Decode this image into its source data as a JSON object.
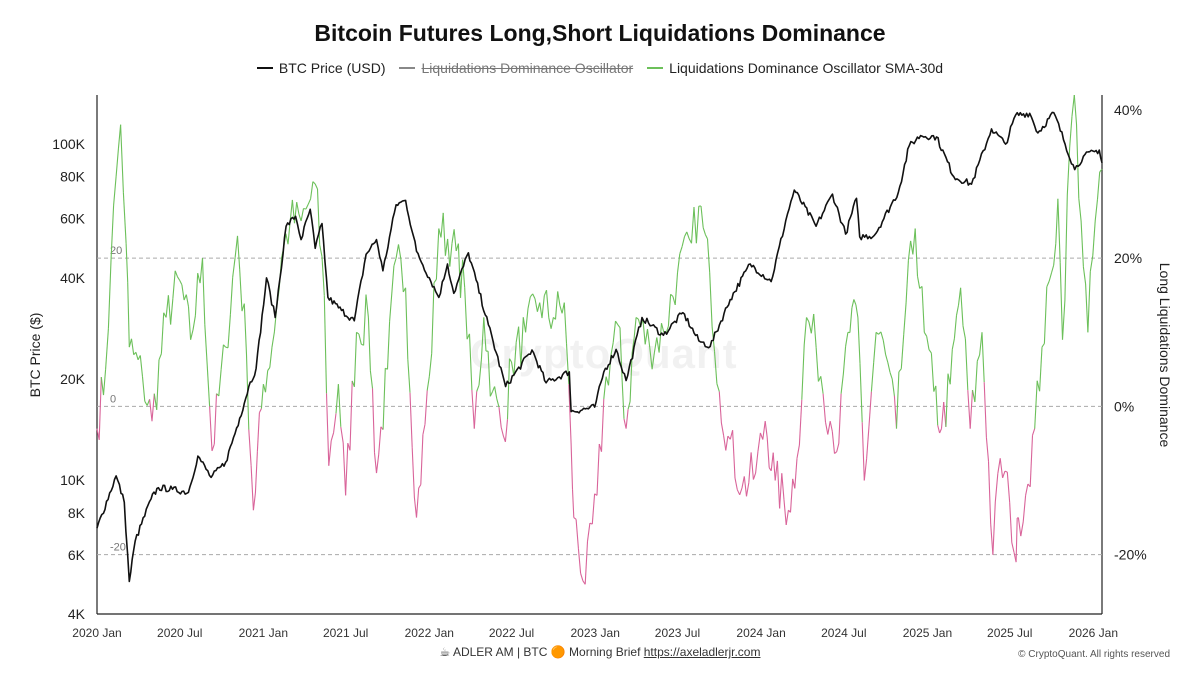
{
  "title": "Bitcoin Futures Long,Short Liquidations Dominance",
  "legend": [
    {
      "label": "BTC Price (USD)",
      "color": "#111111",
      "struck": false
    },
    {
      "label": "Liquidations Dominance Oscillator",
      "color": "#888888",
      "struck": true
    },
    {
      "label": "Liquidations Dominance Oscillator SMA-30d",
      "color": "#6cc05a",
      "struck": false
    }
  ],
  "watermark": "CryptoQuant",
  "footer": {
    "text_before": "☕ ADLER AM | BTC 🟠 Morning Brief ",
    "link": "https://axeladlerjr.com",
    "copyright": "© CryptoQuant. All rights reserved"
  },
  "chart_data": {
    "type": "line",
    "xlabel": "",
    "x_ticks": [
      "2020 Jan",
      "2020 Jul",
      "2021 Jan",
      "2021 Jul",
      "2022 Jan",
      "2022 Jul",
      "2023 Jan",
      "2023 Jul",
      "2024 Jan",
      "2024 Jul",
      "2025 Jan",
      "2025 Jul",
      "2026 Jan"
    ],
    "x_range": [
      "2020-01-01",
      "2026-01-20"
    ],
    "y_left": {
      "label": "BTC Price ($)",
      "scale": "log",
      "range": [
        4000,
        140000
      ],
      "ticks": [
        {
          "v": 4000,
          "t": "4K"
        },
        {
          "v": 6000,
          "t": "6K"
        },
        {
          "v": 8000,
          "t": "8K"
        },
        {
          "v": 10000,
          "t": "10K"
        },
        {
          "v": 20000,
          "t": "20K"
        },
        {
          "v": 40000,
          "t": "40K"
        },
        {
          "v": 60000,
          "t": "60K"
        },
        {
          "v": 80000,
          "t": "80K"
        },
        {
          "v": 100000,
          "t": "100K"
        }
      ]
    },
    "y_right": {
      "label": "Long Liquidations Dominance",
      "range": [
        -28,
        42
      ],
      "ticks": [
        {
          "v": 40,
          "t": "40%"
        },
        {
          "v": 20,
          "t": "20%"
        },
        {
          "v": 0,
          "t": "0%"
        },
        {
          "v": -20,
          "t": "-20%"
        }
      ]
    },
    "ref_lines": [
      {
        "v": 20,
        "t": "20"
      },
      {
        "v": 0,
        "t": "0"
      },
      {
        "v": -20,
        "t": "-20"
      }
    ],
    "grid": false,
    "legend_position": "top-center",
    "colors": {
      "price": "#111111",
      "osc_pos": "#6cc05a",
      "osc_neg": "#d9649a",
      "ref_line": "#aaaaaa"
    },
    "series": [
      {
        "name": "BTC Price (USD)",
        "axis": "left",
        "points": [
          [
            "2020-01-01",
            7200
          ],
          [
            "2020-02-12",
            10300
          ],
          [
            "2020-03-01",
            8600
          ],
          [
            "2020-03-12",
            5000
          ],
          [
            "2020-03-25",
            6600
          ],
          [
            "2020-04-29",
            8800
          ],
          [
            "2020-05-15",
            9500
          ],
          [
            "2020-06-15",
            9400
          ],
          [
            "2020-07-20",
            9200
          ],
          [
            "2020-08-10",
            11800
          ],
          [
            "2020-09-08",
            10200
          ],
          [
            "2020-10-10",
            11300
          ],
          [
            "2020-11-10",
            15300
          ],
          [
            "2020-11-30",
            19000
          ],
          [
            "2020-12-16",
            21500
          ],
          [
            "2021-01-08",
            40000
          ],
          [
            "2021-01-27",
            30500
          ],
          [
            "2021-02-20",
            57000
          ],
          [
            "2021-03-13",
            61000
          ],
          [
            "2021-03-25",
            52000
          ],
          [
            "2021-04-14",
            64000
          ],
          [
            "2021-04-25",
            49000
          ],
          [
            "2021-05-10",
            58000
          ],
          [
            "2021-05-23",
            35000
          ],
          [
            "2021-06-22",
            32000
          ],
          [
            "2021-07-20",
            29800
          ],
          [
            "2021-08-15",
            47000
          ],
          [
            "2021-09-07",
            52000
          ],
          [
            "2021-09-21",
            42000
          ],
          [
            "2021-10-20",
            66000
          ],
          [
            "2021-11-10",
            68000
          ],
          [
            "2021-12-04",
            48000
          ],
          [
            "2022-01-22",
            35000
          ],
          [
            "2022-02-10",
            44000
          ],
          [
            "2022-02-24",
            36000
          ],
          [
            "2022-03-28",
            47500
          ],
          [
            "2022-05-11",
            29000
          ],
          [
            "2022-06-18",
            19000
          ],
          [
            "2022-08-15",
            24400
          ],
          [
            "2022-09-15",
            19500
          ],
          [
            "2022-11-05",
            21000
          ],
          [
            "2022-11-09",
            16000
          ],
          [
            "2022-12-31",
            16500
          ],
          [
            "2023-01-20",
            21000
          ],
          [
            "2023-02-16",
            24500
          ],
          [
            "2023-03-10",
            19800
          ],
          [
            "2023-04-14",
            30500
          ],
          [
            "2023-05-31",
            27000
          ],
          [
            "2023-07-13",
            31500
          ],
          [
            "2023-08-17",
            26000
          ],
          [
            "2023-09-11",
            25000
          ],
          [
            "2023-10-25",
            34500
          ],
          [
            "2023-12-08",
            44000
          ],
          [
            "2024-01-23",
            39000
          ],
          [
            "2024-02-28",
            62000
          ],
          [
            "2024-03-14",
            73000
          ],
          [
            "2024-05-01",
            57000
          ],
          [
            "2024-06-06",
            71000
          ],
          [
            "2024-07-05",
            54000
          ],
          [
            "2024-07-29",
            69000
          ],
          [
            "2024-08-05",
            53000
          ],
          [
            "2024-09-06",
            53500
          ],
          [
            "2024-10-29",
            72000
          ],
          [
            "2024-11-22",
            99000
          ],
          [
            "2024-12-17",
            106000
          ],
          [
            "2025-01-21",
            105000
          ],
          [
            "2025-02-28",
            80000
          ],
          [
            "2025-04-08",
            76000
          ],
          [
            "2025-05-22",
            111000
          ],
          [
            "2025-06-22",
            100000
          ],
          [
            "2025-07-14",
            122000
          ],
          [
            "2025-08-14",
            123500
          ],
          [
            "2025-09-01",
            108000
          ],
          [
            "2025-10-06",
            124000
          ],
          [
            "2025-11-21",
            84000
          ],
          [
            "2025-12-10",
            92000
          ],
          [
            "2026-01-14",
            96000
          ],
          [
            "2026-01-20",
            88000
          ]
        ]
      },
      {
        "name": "Liquidations Dominance Oscillator SMA-30d",
        "axis": "right",
        "points": [
          [
            "2020-01-01",
            -3
          ],
          [
            "2020-01-20",
            5
          ],
          [
            "2020-02-01",
            20
          ],
          [
            "2020-02-12",
            31
          ],
          [
            "2020-02-22",
            38
          ],
          [
            "2020-03-05",
            22
          ],
          [
            "2020-03-12",
            8
          ],
          [
            "2020-04-10",
            4
          ],
          [
            "2020-05-01",
            -2
          ],
          [
            "2020-06-01",
            12
          ],
          [
            "2020-07-01",
            17
          ],
          [
            "2020-07-25",
            9
          ],
          [
            "2020-08-20",
            20
          ],
          [
            "2020-09-10",
            -6
          ],
          [
            "2020-10-10",
            8
          ],
          [
            "2020-11-05",
            23
          ],
          [
            "2020-11-25",
            7
          ],
          [
            "2020-12-10",
            -14
          ],
          [
            "2021-01-01",
            3
          ],
          [
            "2021-01-20",
            8
          ],
          [
            "2021-02-10",
            20
          ],
          [
            "2021-03-01",
            25
          ],
          [
            "2021-03-25",
            25
          ],
          [
            "2021-04-15",
            28
          ],
          [
            "2021-04-25",
            30
          ],
          [
            "2021-05-15",
            15
          ],
          [
            "2021-05-25",
            -8
          ],
          [
            "2021-06-15",
            3
          ],
          [
            "2021-07-01",
            -12
          ],
          [
            "2021-07-25",
            10
          ],
          [
            "2021-08-20",
            12
          ],
          [
            "2021-09-07",
            -9
          ],
          [
            "2021-10-01",
            5
          ],
          [
            "2021-10-20",
            20
          ],
          [
            "2021-11-10",
            16
          ],
          [
            "2021-12-04",
            -15
          ],
          [
            "2022-01-01",
            4
          ],
          [
            "2022-01-22",
            24
          ],
          [
            "2022-02-20",
            22
          ],
          [
            "2022-03-20",
            16
          ],
          [
            "2022-04-10",
            -3
          ],
          [
            "2022-05-01",
            12
          ],
          [
            "2022-05-20",
            2
          ],
          [
            "2022-06-13",
            -4
          ],
          [
            "2022-07-01",
            6
          ],
          [
            "2022-08-01",
            10
          ],
          [
            "2022-09-01",
            14
          ],
          [
            "2022-10-01",
            12
          ],
          [
            "2022-10-25",
            14
          ],
          [
            "2022-11-09",
            -5
          ],
          [
            "2022-11-15",
            -15
          ],
          [
            "2022-12-10",
            -24
          ],
          [
            "2023-01-05",
            -12
          ],
          [
            "2023-01-25",
            4
          ],
          [
            "2023-02-20",
            11
          ],
          [
            "2023-03-10",
            -3
          ],
          [
            "2023-04-01",
            12
          ],
          [
            "2023-05-01",
            8
          ],
          [
            "2023-06-01",
            10
          ],
          [
            "2023-07-01",
            18
          ],
          [
            "2023-08-01",
            22
          ],
          [
            "2023-08-17",
            27
          ],
          [
            "2023-09-10",
            18
          ],
          [
            "2023-10-01",
            2
          ],
          [
            "2023-10-20",
            -4
          ],
          [
            "2023-11-20",
            -11
          ],
          [
            "2023-12-20",
            -9
          ],
          [
            "2024-01-10",
            -2
          ],
          [
            "2024-02-01",
            -10
          ],
          [
            "2024-03-01",
            -14
          ],
          [
            "2024-03-20",
            -7
          ],
          [
            "2024-04-10",
            12
          ],
          [
            "2024-05-01",
            8
          ],
          [
            "2024-06-01",
            -2
          ],
          [
            "2024-06-20",
            -5
          ],
          [
            "2024-07-10",
            10
          ],
          [
            "2024-08-01",
            12
          ],
          [
            "2024-08-15",
            -10
          ],
          [
            "2024-09-10",
            10
          ],
          [
            "2024-10-01",
            7
          ],
          [
            "2024-10-25",
            -3
          ],
          [
            "2024-11-15",
            14
          ],
          [
            "2024-12-05",
            24
          ],
          [
            "2024-12-25",
            10
          ],
          [
            "2025-01-15",
            2
          ],
          [
            "2025-02-01",
            -3
          ],
          [
            "2025-02-20",
            3
          ],
          [
            "2025-03-15",
            16
          ],
          [
            "2025-04-05",
            -3
          ],
          [
            "2025-05-01",
            10
          ],
          [
            "2025-05-25",
            -20
          ],
          [
            "2025-06-10",
            -7
          ],
          [
            "2025-07-01",
            -13
          ],
          [
            "2025-07-15",
            -21
          ],
          [
            "2025-07-20",
            -15
          ],
          [
            "2025-08-05",
            -12
          ],
          [
            "2025-08-25",
            -3
          ],
          [
            "2025-09-10",
            8
          ],
          [
            "2025-10-01",
            18
          ],
          [
            "2025-10-15",
            28
          ],
          [
            "2025-10-25",
            9
          ],
          [
            "2025-11-10",
            35
          ],
          [
            "2025-11-20",
            42
          ],
          [
            "2025-12-05",
            25
          ],
          [
            "2025-12-20",
            10
          ],
          [
            "2026-01-05",
            25
          ],
          [
            "2026-01-20",
            32
          ]
        ]
      }
    ]
  }
}
